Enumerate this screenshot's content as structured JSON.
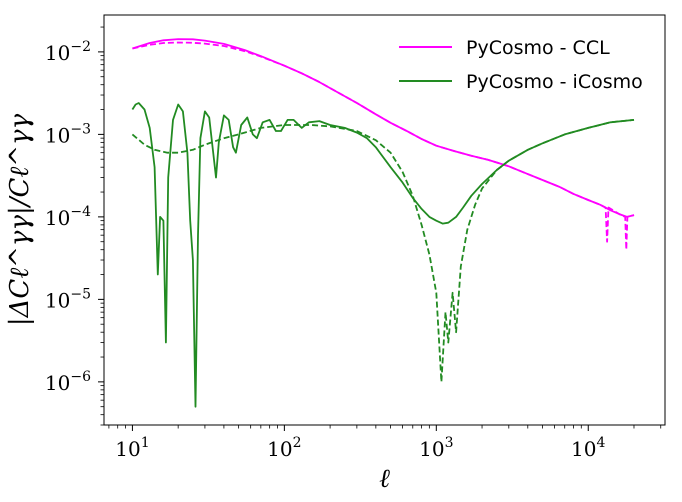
{
  "chart_data": {
    "type": "line",
    "xlabel": "ℓ",
    "ylabel": "|ΔCℓ^γγ|/Cℓ^γγ",
    "xscale": "log",
    "yscale": "log",
    "xlim": [
      6.5,
      32000
    ],
    "ylim": [
      3e-07,
      0.028
    ],
    "grid": false,
    "legend_position": "top-right",
    "xticks": [
      {
        "value": 10,
        "base": "10",
        "exp": "1"
      },
      {
        "value": 100,
        "base": "10",
        "exp": "2"
      },
      {
        "value": 1000,
        "base": "10",
        "exp": "3"
      },
      {
        "value": 10000,
        "base": "10",
        "exp": "4"
      }
    ],
    "yticks": [
      {
        "value": 1e-06,
        "base": "10",
        "exp": "−6"
      },
      {
        "value": 1e-05,
        "base": "10",
        "exp": "−5"
      },
      {
        "value": 0.0001,
        "base": "10",
        "exp": "−4"
      },
      {
        "value": 0.001,
        "base": "10",
        "exp": "−3"
      },
      {
        "value": 0.01,
        "base": "10",
        "exp": "−2"
      }
    ],
    "series": [
      {
        "name": "PyCosmo - CCL",
        "color": "#ff00ff",
        "style": "solid",
        "points": [
          [
            10,
            0.011
          ],
          [
            13,
            0.0128
          ],
          [
            16,
            0.0138
          ],
          [
            20,
            0.0143
          ],
          [
            25,
            0.0142
          ],
          [
            30,
            0.0137
          ],
          [
            40,
            0.0125
          ],
          [
            55,
            0.0105
          ],
          [
            70,
            0.0089
          ],
          [
            100,
            0.0068
          ],
          [
            130,
            0.0055
          ],
          [
            170,
            0.0043
          ],
          [
            220,
            0.0033
          ],
          [
            300,
            0.0024
          ],
          [
            400,
            0.00175
          ],
          [
            500,
            0.00138
          ],
          [
            650,
            0.00108
          ],
          [
            800,
            0.00088
          ],
          [
            1000,
            0.00073
          ],
          [
            1300,
            0.00063
          ],
          [
            1700,
            0.00055
          ],
          [
            2200,
            0.00049
          ],
          [
            3000,
            0.00041
          ],
          [
            4000,
            0.00033
          ],
          [
            5000,
            0.00028
          ],
          [
            6500,
            0.00023
          ],
          [
            8000,
            0.00019
          ],
          [
            10000,
            0.00016
          ],
          [
            12000,
            0.00014
          ],
          [
            14000,
            0.00012
          ],
          [
            16000,
            0.000108
          ],
          [
            18000,
            0.0001
          ],
          [
            20000,
            0.000105
          ]
        ]
      },
      {
        "name": "",
        "color": "#ff00ff",
        "style": "dashed",
        "points": [
          [
            10,
            0.011
          ],
          [
            13,
            0.0122
          ],
          [
            16,
            0.0128
          ],
          [
            20,
            0.013
          ],
          [
            25,
            0.0129
          ],
          [
            30,
            0.0126
          ],
          [
            40,
            0.0118
          ],
          [
            55,
            0.0102
          ],
          [
            70,
            0.0088
          ],
          [
            100,
            0.0068
          ],
          [
            130,
            0.0055
          ],
          [
            170,
            0.0043
          ],
          [
            220,
            0.0033
          ],
          [
            300,
            0.0024
          ],
          [
            400,
            0.00175
          ],
          [
            500,
            0.00138
          ],
          [
            650,
            0.00108
          ],
          [
            800,
            0.00088
          ],
          [
            1000,
            0.00073
          ],
          [
            1300,
            0.00063
          ],
          [
            1700,
            0.00055
          ],
          [
            2200,
            0.00049
          ],
          [
            3000,
            0.00041
          ],
          [
            4000,
            0.00033
          ],
          [
            5000,
            0.00028
          ],
          [
            6500,
            0.00023
          ],
          [
            8000,
            0.00019
          ],
          [
            10000,
            0.00016
          ],
          [
            12000,
            0.00014
          ],
          [
            13000,
            0.00013
          ],
          [
            13300,
            5e-05
          ],
          [
            13600,
            0.00013
          ],
          [
            16000,
            0.000108
          ],
          [
            17500,
            0.0001
          ],
          [
            17800,
            4e-05
          ],
          [
            18100,
            0.0001
          ],
          [
            20000,
            0.000105
          ]
        ]
      },
      {
        "name": "PyCosmo - iCosmo",
        "color": "#228b22",
        "style": "solid",
        "points": [
          [
            10,
            0.002
          ],
          [
            10.5,
            0.0023
          ],
          [
            11,
            0.0024
          ],
          [
            12,
            0.002
          ],
          [
            13,
            0.0012
          ],
          [
            14,
            0.0004
          ],
          [
            14.7,
            2e-05
          ],
          [
            15.2,
            0.0001
          ],
          [
            16,
            9e-05
          ],
          [
            16.6,
            3e-06
          ],
          [
            17.2,
            0.0003
          ],
          [
            18.5,
            0.0015
          ],
          [
            20,
            0.0023
          ],
          [
            21.5,
            0.0019
          ],
          [
            23,
            0.0006
          ],
          [
            24,
            9e-05
          ],
          [
            25,
            3e-05
          ],
          [
            26,
            5e-07
          ],
          [
            27,
            6e-05
          ],
          [
            28,
            0.0009
          ],
          [
            30,
            0.0019
          ],
          [
            32,
            0.0016
          ],
          [
            34,
            0.0006
          ],
          [
            35.5,
            0.0003
          ],
          [
            37,
            0.0008
          ],
          [
            40,
            0.0017
          ],
          [
            43,
            0.0015
          ],
          [
            46,
            0.0007
          ],
          [
            48,
            0.0006
          ],
          [
            52,
            0.0013
          ],
          [
            57,
            0.0016
          ],
          [
            62,
            0.001
          ],
          [
            66,
            0.0009
          ],
          [
            72,
            0.0014
          ],
          [
            80,
            0.0015
          ],
          [
            88,
            0.0011
          ],
          [
            95,
            0.0011
          ],
          [
            105,
            0.0015
          ],
          [
            115,
            0.0015
          ],
          [
            130,
            0.0012
          ],
          [
            145,
            0.0014
          ],
          [
            170,
            0.00145
          ],
          [
            200,
            0.0013
          ],
          [
            250,
            0.0012
          ],
          [
            300,
            0.00105
          ],
          [
            350,
            0.0009
          ],
          [
            400,
            0.0007
          ],
          [
            500,
            0.0004
          ],
          [
            600,
            0.00026
          ],
          [
            700,
            0.00017
          ],
          [
            800,
            0.000125
          ],
          [
            900,
            0.0001
          ],
          [
            1000,
            9e-05
          ],
          [
            1100,
            8.3e-05
          ],
          [
            1200,
            8.5e-05
          ],
          [
            1350,
            0.0001
          ],
          [
            1500,
            0.00013
          ],
          [
            1700,
            0.00018
          ],
          [
            2000,
            0.00025
          ],
          [
            2500,
            0.00037
          ],
          [
            3000,
            0.00048
          ],
          [
            4000,
            0.00065
          ],
          [
            5000,
            0.00078
          ],
          [
            7000,
            0.001
          ],
          [
            10000,
            0.0012
          ],
          [
            14000,
            0.0014
          ],
          [
            20000,
            0.0015
          ]
        ]
      },
      {
        "name": "",
        "color": "#228b22",
        "style": "dashed",
        "points": [
          [
            10,
            0.001
          ],
          [
            12,
            0.00075
          ],
          [
            14,
            0.00065
          ],
          [
            17,
            0.0006
          ],
          [
            20,
            0.0006
          ],
          [
            25,
            0.00065
          ],
          [
            30,
            0.00075
          ],
          [
            40,
            0.0009
          ],
          [
            50,
            0.001
          ],
          [
            70,
            0.0012
          ],
          [
            100,
            0.0013
          ],
          [
            150,
            0.0013
          ],
          [
            200,
            0.00125
          ],
          [
            300,
            0.0011
          ],
          [
            400,
            0.00085
          ],
          [
            500,
            0.0006
          ],
          [
            600,
            0.00035
          ],
          [
            700,
            0.00018
          ],
          [
            800,
            8e-05
          ],
          [
            900,
            3.5e-05
          ],
          [
            1000,
            1.2e-05
          ],
          [
            1080,
            1e-06
          ],
          [
            1150,
            7e-06
          ],
          [
            1200,
            3e-06
          ],
          [
            1280,
            1.2e-05
          ],
          [
            1350,
            4e-06
          ],
          [
            1450,
            2.5e-05
          ],
          [
            1600,
            7e-05
          ],
          [
            1800,
            0.00014
          ],
          [
            2000,
            0.00022
          ],
          [
            2500,
            0.00037
          ],
          [
            3000,
            0.00048
          ],
          [
            4000,
            0.00065
          ],
          [
            5000,
            0.00078
          ],
          [
            7000,
            0.001
          ],
          [
            10000,
            0.0012
          ],
          [
            14000,
            0.0014
          ],
          [
            20000,
            0.0015
          ]
        ]
      }
    ]
  }
}
